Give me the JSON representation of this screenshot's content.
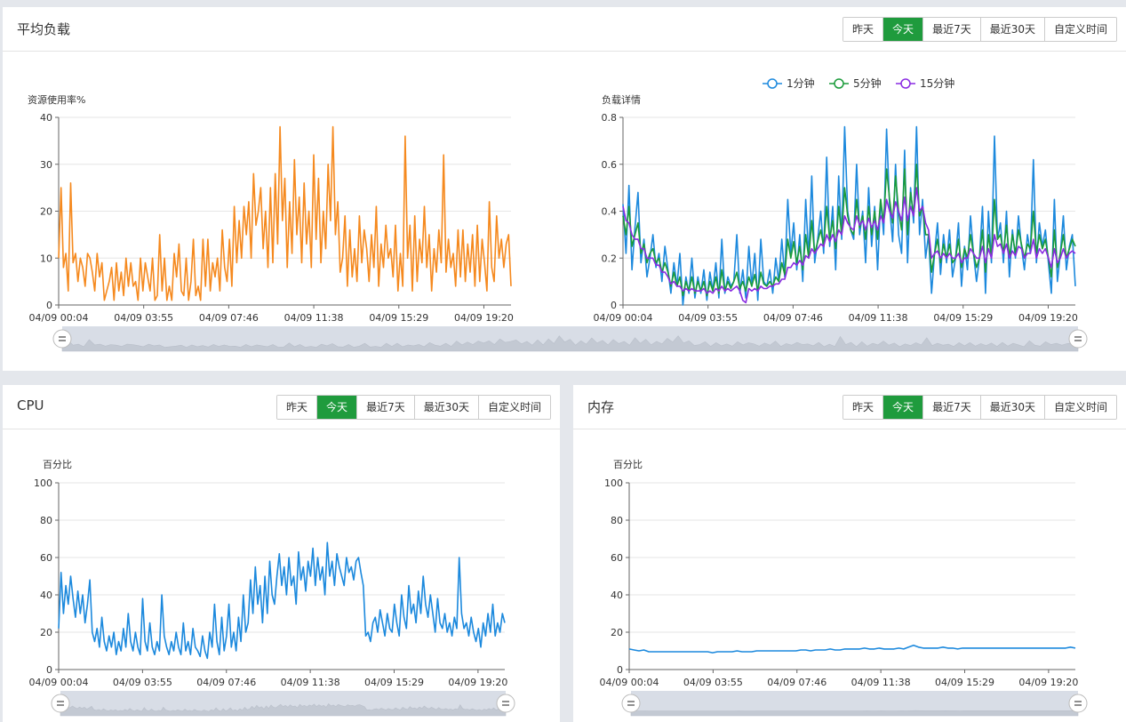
{
  "time_buttons": [
    "昨天",
    "今天",
    "最近7天",
    "最近30天",
    "自定义时间"
  ],
  "active_button": "今天",
  "colors": {
    "accent": "#1f9b3d",
    "orange": "#f5891e",
    "blue": "#1c89dd",
    "green": "#1a9b3a",
    "purple": "#8a2be2",
    "axis": "#999",
    "grid": "#e6e6e6"
  },
  "load_panel": {
    "title": "平均负载"
  },
  "cpu_panel": {
    "title": "CPU"
  },
  "mem_panel": {
    "title": "内存"
  },
  "time_ticks": [
    "04/09 00:04",
    "04/09 03:55",
    "04/09 07:46",
    "04/09 11:38",
    "04/09 15:29",
    "04/09 19:20"
  ],
  "chart_data": [
    {
      "id": "resource",
      "type": "line",
      "ylabel": "资源使用率%",
      "ylim": [
        0,
        40
      ],
      "yticks": [
        0,
        10,
        20,
        30,
        40
      ],
      "grid": true,
      "series": [
        {
          "color": "#f5891e",
          "values": [
            10,
            25,
            8,
            11,
            3,
            26,
            9,
            11,
            5,
            10,
            8,
            4,
            11,
            10,
            7,
            3,
            11,
            6,
            9,
            1,
            3,
            5,
            8,
            1,
            9,
            3,
            7,
            2,
            10,
            4,
            9,
            4,
            5,
            1,
            10,
            3,
            9,
            6,
            3,
            10,
            1,
            2,
            15,
            3,
            10,
            1,
            4,
            1,
            11,
            6,
            13,
            3,
            2,
            10,
            1,
            5,
            14,
            2,
            4,
            1,
            14,
            4,
            14,
            3,
            9,
            6,
            10,
            3,
            16,
            8,
            5,
            14,
            4,
            21,
            9,
            18,
            10,
            21,
            15,
            22,
            10,
            28,
            17,
            20,
            25,
            12,
            20,
            8,
            25,
            9,
            28,
            13,
            38,
            18,
            27,
            8,
            22,
            11,
            31,
            15,
            23,
            9,
            26,
            13,
            20,
            8,
            32,
            14,
            27,
            9,
            20,
            12,
            30,
            18,
            38,
            15,
            22,
            7,
            10,
            19,
            4,
            16,
            6,
            12,
            5,
            19,
            9,
            16,
            12,
            5,
            15,
            8,
            21,
            4,
            13,
            8,
            17,
            10,
            12,
            6,
            17,
            3,
            11,
            4,
            36,
            10,
            17,
            3,
            19,
            5,
            14,
            9,
            21,
            8,
            15,
            3,
            12,
            7,
            16,
            9,
            32,
            7,
            14,
            8,
            11,
            4,
            16,
            6,
            16,
            5,
            13,
            7,
            15,
            4,
            17,
            5,
            14,
            9,
            3,
            22,
            8,
            5,
            19,
            10,
            14,
            8,
            13,
            15,
            4
          ]
        }
      ]
    },
    {
      "id": "load",
      "type": "line",
      "ylabel": "负载详情",
      "ylim": [
        0,
        0.8
      ],
      "yticks": [
        "0",
        "0.2",
        "0.4",
        "0.6",
        "0.8"
      ],
      "grid": true,
      "legend_position": "top",
      "series": [
        {
          "name": "1分钟",
          "color": "#1c89dd",
          "values": [
            0.43,
            0.22,
            0.51,
            0.15,
            0.33,
            0.48,
            0.18,
            0.28,
            0.12,
            0.2,
            0.3,
            0.16,
            0.22,
            0.1,
            0.25,
            0.15,
            0.05,
            0.18,
            0.08,
            0.22,
            0.0,
            0.12,
            0.05,
            0.2,
            0.03,
            0.12,
            0.05,
            0.15,
            0.02,
            0.14,
            0.06,
            0.18,
            0.03,
            0.28,
            0.05,
            0.12,
            0.08,
            0.1,
            0.3,
            0.05,
            0.15,
            0.03,
            0.25,
            0.08,
            0.22,
            0.02,
            0.28,
            0.1,
            0.08,
            0.15,
            0.05,
            0.2,
            0.1,
            0.28,
            0.12,
            0.45,
            0.22,
            0.35,
            0.15,
            0.3,
            0.1,
            0.45,
            0.2,
            0.55,
            0.18,
            0.28,
            0.4,
            0.22,
            0.63,
            0.25,
            0.42,
            0.15,
            0.55,
            0.28,
            0.76,
            0.4,
            0.32,
            0.28,
            0.6,
            0.3,
            0.4,
            0.18,
            0.5,
            0.25,
            0.42,
            0.15,
            0.45,
            0.3,
            0.75,
            0.42,
            0.27,
            0.6,
            0.3,
            0.22,
            0.66,
            0.18,
            0.5,
            0.35,
            0.76,
            0.3,
            0.45,
            0.2,
            0.3,
            0.05,
            0.22,
            0.35,
            0.13,
            0.3,
            0.18,
            0.32,
            0.12,
            0.2,
            0.35,
            0.08,
            0.25,
            0.15,
            0.38,
            0.22,
            0.1,
            0.2,
            0.42,
            0.05,
            0.4,
            0.18,
            0.72,
            0.28,
            0.35,
            0.18,
            0.4,
            0.12,
            0.32,
            0.2,
            0.38,
            0.25,
            0.15,
            0.3,
            0.22,
            0.62,
            0.18,
            0.35,
            0.25,
            0.32,
            0.18,
            0.05,
            0.45,
            0.1,
            0.22,
            0.38,
            0.15,
            0.25,
            0.3,
            0.08
          ]
        },
        {
          "name": "5分钟",
          "color": "#1a9b3a",
          "values": [
            0.38,
            0.3,
            0.42,
            0.25,
            0.3,
            0.35,
            0.22,
            0.26,
            0.18,
            0.22,
            0.24,
            0.18,
            0.2,
            0.14,
            0.18,
            0.14,
            0.08,
            0.14,
            0.08,
            0.12,
            0.04,
            0.1,
            0.06,
            0.12,
            0.05,
            0.1,
            0.06,
            0.1,
            0.04,
            0.1,
            0.06,
            0.12,
            0.05,
            0.15,
            0.06,
            0.1,
            0.07,
            0.1,
            0.14,
            0.07,
            0.1,
            0.06,
            0.12,
            0.08,
            0.13,
            0.06,
            0.14,
            0.09,
            0.08,
            0.1,
            0.08,
            0.12,
            0.1,
            0.18,
            0.13,
            0.28,
            0.2,
            0.27,
            0.18,
            0.25,
            0.15,
            0.3,
            0.2,
            0.36,
            0.22,
            0.27,
            0.32,
            0.25,
            0.42,
            0.28,
            0.36,
            0.24,
            0.42,
            0.3,
            0.5,
            0.38,
            0.32,
            0.3,
            0.45,
            0.33,
            0.38,
            0.28,
            0.42,
            0.3,
            0.4,
            0.28,
            0.45,
            0.35,
            0.58,
            0.45,
            0.35,
            0.55,
            0.4,
            0.32,
            0.58,
            0.3,
            0.48,
            0.38,
            0.6,
            0.38,
            0.42,
            0.3,
            0.3,
            0.14,
            0.22,
            0.28,
            0.18,
            0.26,
            0.2,
            0.26,
            0.18,
            0.2,
            0.28,
            0.16,
            0.24,
            0.2,
            0.3,
            0.22,
            0.16,
            0.2,
            0.32,
            0.14,
            0.3,
            0.2,
            0.45,
            0.28,
            0.3,
            0.22,
            0.34,
            0.2,
            0.3,
            0.22,
            0.32,
            0.26,
            0.2,
            0.26,
            0.24,
            0.4,
            0.22,
            0.3,
            0.24,
            0.28,
            0.2,
            0.12,
            0.32,
            0.16,
            0.22,
            0.3,
            0.2,
            0.24,
            0.28,
            0.25
          ]
        },
        {
          "name": "15分钟",
          "color": "#8a2be2",
          "values": [
            0.42,
            0.36,
            0.35,
            0.3,
            0.28,
            0.28,
            0.24,
            0.24,
            0.2,
            0.2,
            0.2,
            0.17,
            0.17,
            0.14,
            0.14,
            0.12,
            0.09,
            0.1,
            0.08,
            0.08,
            0.06,
            0.07,
            0.06,
            0.07,
            0.06,
            0.06,
            0.06,
            0.07,
            0.05,
            0.06,
            0.05,
            0.07,
            0.06,
            0.08,
            0.06,
            0.07,
            0.06,
            0.07,
            0.08,
            0.06,
            0.02,
            0.01,
            0.07,
            0.06,
            0.07,
            0.06,
            0.08,
            0.07,
            0.07,
            0.08,
            0.08,
            0.09,
            0.09,
            0.11,
            0.11,
            0.16,
            0.16,
            0.18,
            0.17,
            0.19,
            0.17,
            0.21,
            0.2,
            0.24,
            0.22,
            0.24,
            0.26,
            0.25,
            0.3,
            0.27,
            0.3,
            0.27,
            0.32,
            0.3,
            0.38,
            0.35,
            0.33,
            0.32,
            0.38,
            0.34,
            0.36,
            0.32,
            0.37,
            0.33,
            0.36,
            0.32,
            0.38,
            0.35,
            0.45,
            0.4,
            0.37,
            0.44,
            0.4,
            0.36,
            0.46,
            0.36,
            0.42,
            0.38,
            0.5,
            0.4,
            0.42,
            0.35,
            0.32,
            0.2,
            0.22,
            0.23,
            0.2,
            0.22,
            0.2,
            0.22,
            0.2,
            0.2,
            0.22,
            0.18,
            0.2,
            0.2,
            0.24,
            0.22,
            0.2,
            0.2,
            0.25,
            0.18,
            0.24,
            0.2,
            0.3,
            0.25,
            0.26,
            0.22,
            0.26,
            0.2,
            0.23,
            0.21,
            0.25,
            0.24,
            0.2,
            0.22,
            0.22,
            0.28,
            0.2,
            0.24,
            0.22,
            0.24,
            0.2,
            0.16,
            0.24,
            0.18,
            0.2,
            0.24,
            0.2,
            0.22,
            0.23,
            0.22
          ]
        }
      ]
    },
    {
      "id": "cpu",
      "type": "line",
      "ylabel": "百分比",
      "ylim": [
        0,
        100
      ],
      "yticks": [
        0,
        20,
        40,
        60,
        80,
        100
      ],
      "grid": true,
      "series": [
        {
          "color": "#1c89dd",
          "values": [
            22,
            52,
            30,
            45,
            35,
            50,
            38,
            28,
            42,
            30,
            40,
            25,
            35,
            48,
            20,
            15,
            22,
            12,
            28,
            15,
            10,
            18,
            12,
            20,
            8,
            15,
            10,
            22,
            12,
            30,
            15,
            10,
            20,
            12,
            8,
            38,
            15,
            10,
            25,
            12,
            8,
            15,
            10,
            40,
            18,
            12,
            8,
            15,
            10,
            20,
            12,
            8,
            25,
            10,
            15,
            8,
            22,
            12,
            10,
            7,
            18,
            10,
            6,
            20,
            12,
            35,
            15,
            8,
            28,
            10,
            18,
            35,
            12,
            20,
            10,
            28,
            15,
            40,
            20,
            25,
            48,
            30,
            55,
            35,
            45,
            25,
            50,
            30,
            58,
            40,
            35,
            50,
            62,
            45,
            55,
            40,
            60,
            45,
            50,
            35,
            63,
            48,
            55,
            42,
            58,
            50,
            65,
            45,
            60,
            48,
            55,
            40,
            68,
            50,
            58,
            45,
            62,
            55,
            50,
            45,
            60,
            52,
            55,
            48,
            58,
            60,
            52,
            45,
            18,
            20,
            15,
            25,
            28,
            20,
            32,
            25,
            18,
            30,
            22,
            20,
            35,
            25,
            18,
            40,
            28,
            22,
            45,
            30,
            35,
            25,
            42,
            30,
            50,
            35,
            28,
            40,
            30,
            20,
            38,
            25,
            22,
            30,
            20,
            25,
            18,
            28,
            22,
            60,
            30,
            22,
            25,
            18,
            28,
            20,
            15,
            22,
            12,
            25,
            18,
            30,
            20,
            35,
            18,
            25,
            20,
            30,
            25
          ]
        }
      ]
    },
    {
      "id": "mem",
      "type": "line",
      "ylabel": "百分比",
      "ylim": [
        0,
        100
      ],
      "yticks": [
        0,
        20,
        40,
        60,
        80,
        100
      ],
      "grid": true,
      "series": [
        {
          "color": "#1c89dd",
          "values": [
            11,
            10.5,
            10,
            10.5,
            9.5,
            9.5,
            9.5,
            9.5,
            9.5,
            9.5,
            9.5,
            9.5,
            9.5,
            9.5,
            9.5,
            9.5,
            9.5,
            9,
            9.5,
            9.5,
            9.5,
            9.5,
            10,
            9.5,
            9.5,
            9.5,
            10,
            10,
            10,
            10,
            10,
            10,
            10,
            10,
            10,
            10.5,
            10.5,
            10,
            10.5,
            10.5,
            10.5,
            11,
            10.5,
            10.5,
            11,
            11,
            11,
            11,
            11.5,
            11,
            11,
            11.5,
            11,
            11,
            11,
            11.5,
            11,
            12,
            13,
            12,
            11.5,
            11.5,
            11.5,
            11.5,
            12,
            11.5,
            11.5,
            11,
            11.5,
            11.5,
            11.5,
            11.5,
            11.5,
            11.5,
            11.5,
            11.5,
            11.5,
            11.5,
            11.5,
            11.5,
            11.5,
            11.5,
            11.5,
            11.5,
            11.5,
            11.5,
            11.5,
            11.5,
            11.5,
            11.5,
            12,
            11.5
          ]
        }
      ]
    }
  ]
}
